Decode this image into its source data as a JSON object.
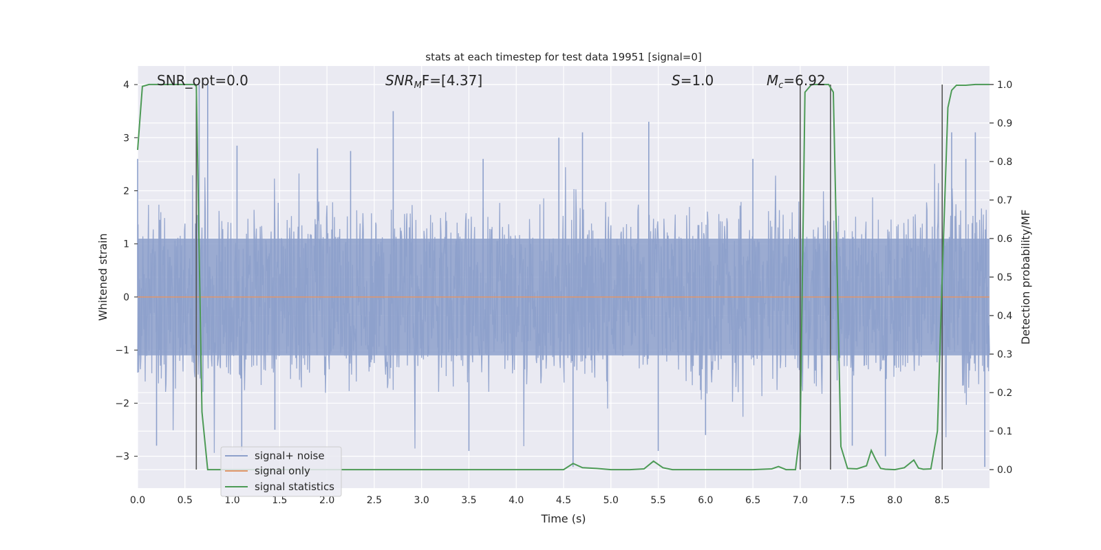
{
  "chart_data": {
    "type": "line",
    "title": "stats at each timestep for test data 19951 [signal=0]",
    "xlabel": "Time (s)",
    "ylabel": "Whitened strain",
    "y2label": "Detection probability/MF",
    "xlim": [
      0.0,
      9.0
    ],
    "ylim": [
      -3.6,
      4.35
    ],
    "y2lim": [
      -0.048,
      1.048
    ],
    "xticks": [
      "0.0",
      "0.5",
      "1.0",
      "1.5",
      "2.0",
      "2.5",
      "3.0",
      "3.5",
      "4.0",
      "4.5",
      "5.0",
      "5.5",
      "6.0",
      "6.5",
      "7.0",
      "7.5",
      "8.0",
      "8.5"
    ],
    "yticks": [
      "4",
      "3",
      "2",
      "1",
      "0",
      "−1",
      "−2",
      "−3"
    ],
    "y2ticks": [
      "1.0",
      "0.9",
      "0.8",
      "0.7",
      "0.6",
      "0.5",
      "0.4",
      "0.3",
      "0.2",
      "0.1",
      "0.0"
    ],
    "grid": true,
    "legend_position": "lower-left",
    "annotations": {
      "snr_opt": "SNR_opt=0.0",
      "snr_mf_main": "SNR",
      "snr_mf_sub": "M",
      "snr_mf_rest": "F=[4.37]",
      "s_main": "S",
      "s_rest": "=1.0",
      "mc_main": "M",
      "mc_sub": "c",
      "mc_rest": "=6.92"
    },
    "series": [
      {
        "name": "signal+ noise",
        "color": "#8da0cb",
        "description_free": true,
        "typical_range": [
          -1.1,
          1.1
        ],
        "peaks": [
          {
            "x": 0.0,
            "y": 2.6
          },
          {
            "x": 0.2,
            "y": -2.8
          },
          {
            "x": 0.65,
            "y": 4.0
          },
          {
            "x": 0.74,
            "y": 4.0
          },
          {
            "x": 1.05,
            "y": 2.85
          },
          {
            "x": 1.1,
            "y": -2.9
          },
          {
            "x": 1.45,
            "y": -2.5
          },
          {
            "x": 1.9,
            "y": 2.8
          },
          {
            "x": 2.25,
            "y": 2.75
          },
          {
            "x": 2.7,
            "y": 3.5
          },
          {
            "x": 3.5,
            "y": -2.9
          },
          {
            "x": 3.65,
            "y": 2.6
          },
          {
            "x": 4.45,
            "y": 3.0
          },
          {
            "x": 4.6,
            "y": -3.2
          },
          {
            "x": 4.7,
            "y": 3.1
          },
          {
            "x": 5.4,
            "y": 3.3
          },
          {
            "x": 5.5,
            "y": -2.9
          },
          {
            "x": 6.0,
            "y": -2.6
          },
          {
            "x": 6.5,
            "y": 2.6
          },
          {
            "x": 7.0,
            "y": -3.1
          },
          {
            "x": 7.55,
            "y": -2.8
          },
          {
            "x": 7.9,
            "y": -3.0
          },
          {
            "x": 8.5,
            "y": -2.6
          },
          {
            "x": 8.6,
            "y": 3.1
          },
          {
            "x": 8.75,
            "y": 2.6
          },
          {
            "x": 8.85,
            "y": 3.1
          },
          {
            "x": 8.95,
            "y": -3.2
          }
        ]
      },
      {
        "name": "signal only",
        "color": "#e0966a",
        "x": [
          0.0,
          9.0
        ],
        "y": [
          0.0,
          0.0
        ]
      },
      {
        "name": "signal statistics",
        "color": "#4c9a55",
        "axis": "right",
        "x": [
          0.0,
          0.05,
          0.12,
          0.2,
          0.3,
          0.4,
          0.5,
          0.6,
          0.62,
          0.68,
          0.74,
          0.8,
          1.0,
          1.5,
          2.0,
          2.5,
          3.0,
          3.5,
          4.0,
          4.4,
          4.5,
          4.6,
          4.7,
          4.85,
          5.0,
          5.2,
          5.35,
          5.45,
          5.55,
          5.65,
          6.0,
          6.2,
          6.5,
          6.7,
          6.77,
          6.85,
          6.95,
          7.0,
          7.05,
          7.12,
          7.2,
          7.25,
          7.3,
          7.35,
          7.43,
          7.5,
          7.6,
          7.7,
          7.75,
          7.8,
          7.85,
          7.9,
          8.0,
          8.1,
          8.2,
          8.25,
          8.3,
          8.38,
          8.45,
          8.5,
          8.56,
          8.6,
          8.65,
          8.75,
          8.85,
          9.0
        ],
        "y": [
          0.83,
          0.995,
          1.0,
          1.0,
          1.0,
          1.0,
          1.0,
          1.0,
          0.995,
          0.15,
          0.0,
          0.0,
          0.0,
          0.0,
          0.0,
          0.0,
          0.0,
          0.0,
          0.0,
          0.0,
          0.0,
          0.016,
          0.005,
          0.003,
          0.0,
          0.0,
          0.002,
          0.022,
          0.005,
          0.0,
          0.0,
          0.0,
          0.0,
          0.002,
          0.008,
          0.0,
          0.0,
          0.1,
          0.98,
          1.0,
          1.0,
          1.0,
          1.0,
          0.98,
          0.06,
          0.003,
          0.002,
          0.01,
          0.05,
          0.025,
          0.003,
          0.001,
          0.0,
          0.005,
          0.025,
          0.004,
          0.001,
          0.002,
          0.1,
          0.5,
          0.94,
          0.985,
          0.998,
          0.998,
          1.0,
          1.0
        ]
      }
    ],
    "vlines": {
      "color": "#555555",
      "x": [
        0.62,
        7.0,
        7.32,
        8.5
      ],
      "y_range": [
        -3.25,
        4.0
      ]
    }
  }
}
